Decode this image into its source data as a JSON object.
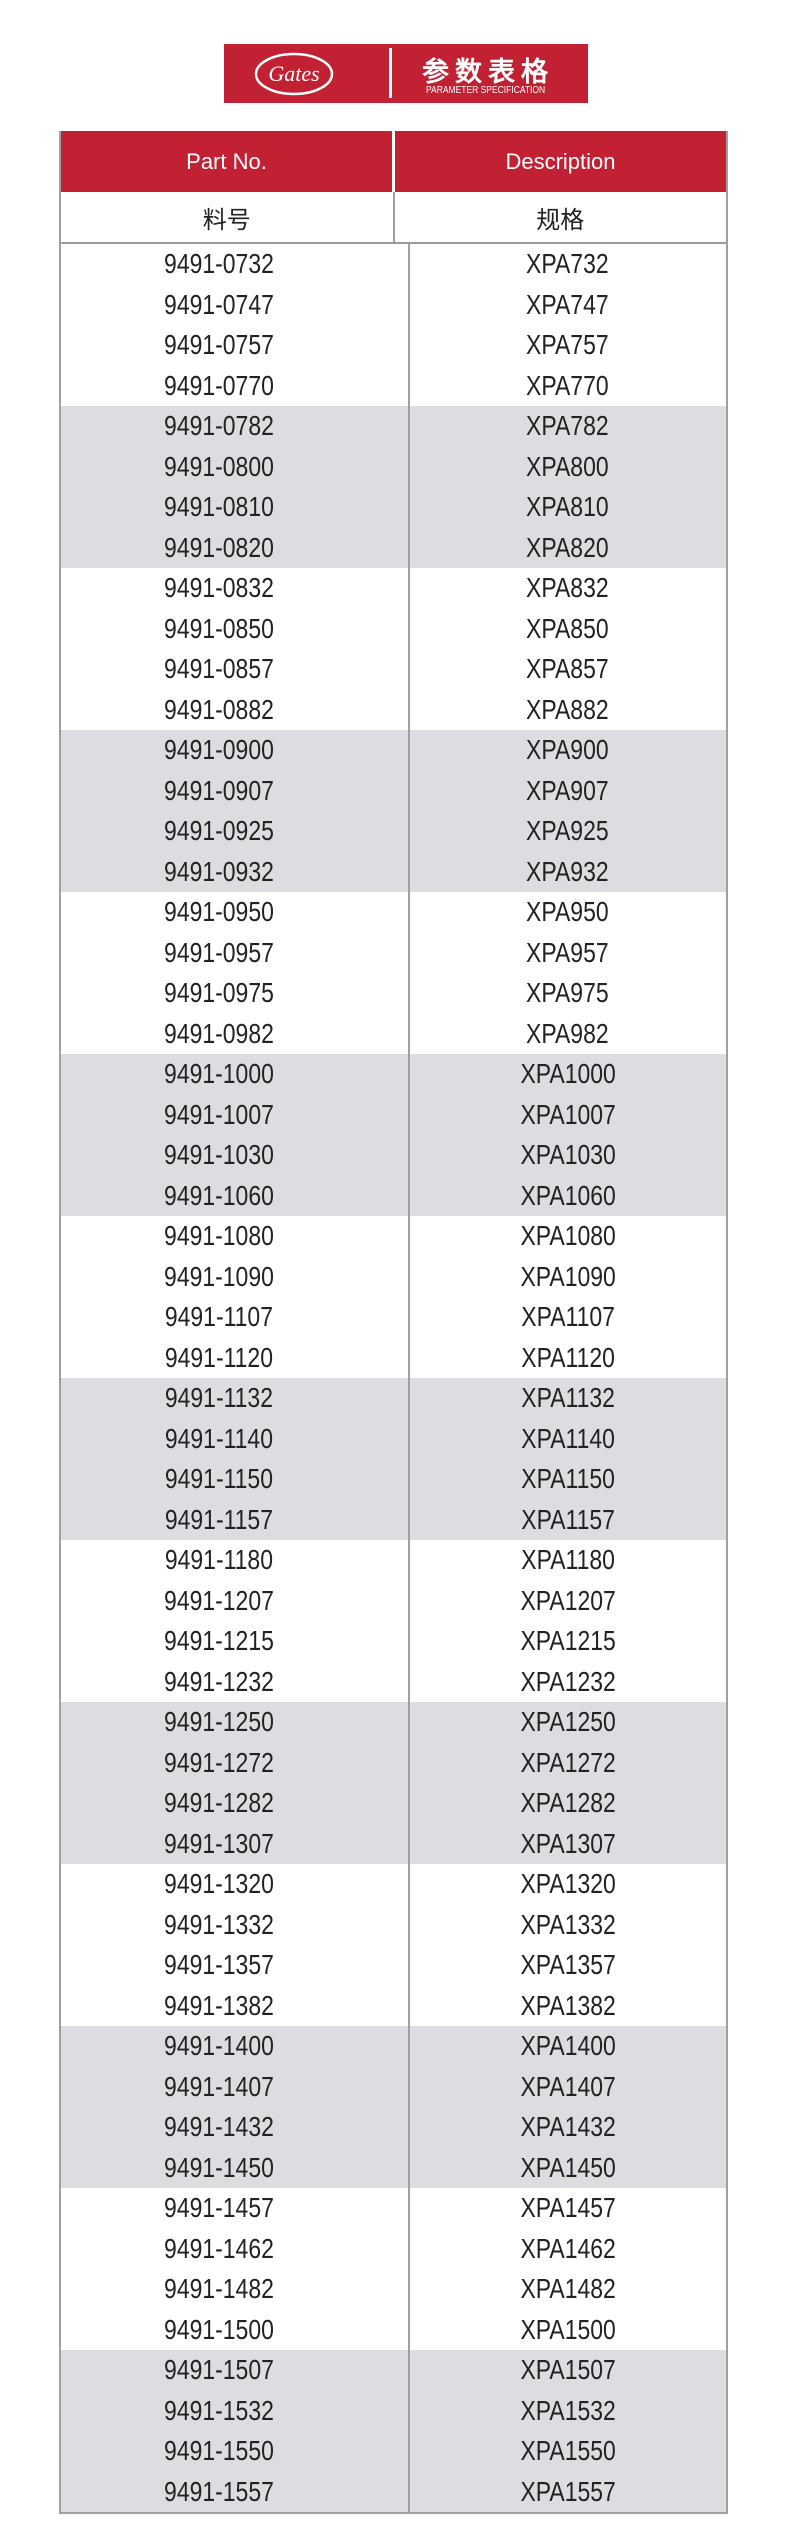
{
  "banner": {
    "logo_text": "Gates",
    "title": "参数表格",
    "subtitle": "PARAMETER SPECIFICATION"
  },
  "colors": {
    "brand_red": "#c22033",
    "row_grey": "#dcdde0"
  },
  "table": {
    "headers": [
      "Part No.",
      "Description"
    ],
    "subheaders": [
      "料号",
      "规格"
    ],
    "rows": [
      [
        "9491-0732",
        "XPA732"
      ],
      [
        "9491-0747",
        "XPA747"
      ],
      [
        "9491-0757",
        "XPA757"
      ],
      [
        "9491-0770",
        "XPA770"
      ],
      [
        "9491-0782",
        "XPA782"
      ],
      [
        "9491-0800",
        "XPA800"
      ],
      [
        "9491-0810",
        "XPA810"
      ],
      [
        "9491-0820",
        "XPA820"
      ],
      [
        "9491-0832",
        "XPA832"
      ],
      [
        "9491-0850",
        "XPA850"
      ],
      [
        "9491-0857",
        "XPA857"
      ],
      [
        "9491-0882",
        "XPA882"
      ],
      [
        "9491-0900",
        "XPA900"
      ],
      [
        "9491-0907",
        "XPA907"
      ],
      [
        "9491-0925",
        "XPA925"
      ],
      [
        "9491-0932",
        "XPA932"
      ],
      [
        "9491-0950",
        "XPA950"
      ],
      [
        "9491-0957",
        "XPA957"
      ],
      [
        "9491-0975",
        "XPA975"
      ],
      [
        "9491-0982",
        "XPA982"
      ],
      [
        "9491-1000",
        "XPA1000"
      ],
      [
        "9491-1007",
        "XPA1007"
      ],
      [
        "9491-1030",
        "XPA1030"
      ],
      [
        "9491-1060",
        "XPA1060"
      ],
      [
        "9491-1080",
        "XPA1080"
      ],
      [
        "9491-1090",
        "XPA1090"
      ],
      [
        "9491-1107",
        "XPA1107"
      ],
      [
        "9491-1120",
        "XPA1120"
      ],
      [
        "9491-1132",
        "XPA1132"
      ],
      [
        "9491-1140",
        "XPA1140"
      ],
      [
        "9491-1150",
        "XPA1150"
      ],
      [
        "9491-1157",
        "XPA1157"
      ],
      [
        "9491-1180",
        "XPA1180"
      ],
      [
        "9491-1207",
        "XPA1207"
      ],
      [
        "9491-1215",
        "XPA1215"
      ],
      [
        "9491-1232",
        "XPA1232"
      ],
      [
        "9491-1250",
        "XPA1250"
      ],
      [
        "9491-1272",
        "XPA1272"
      ],
      [
        "9491-1282",
        "XPA1282"
      ],
      [
        "9491-1307",
        "XPA1307"
      ],
      [
        "9491-1320",
        "XPA1320"
      ],
      [
        "9491-1332",
        "XPA1332"
      ],
      [
        "9491-1357",
        "XPA1357"
      ],
      [
        "9491-1382",
        "XPA1382"
      ],
      [
        "9491-1400",
        "XPA1400"
      ],
      [
        "9491-1407",
        "XPA1407"
      ],
      [
        "9491-1432",
        "XPA1432"
      ],
      [
        "9491-1450",
        "XPA1450"
      ],
      [
        "9491-1457",
        "XPA1457"
      ],
      [
        "9491-1462",
        "XPA1462"
      ],
      [
        "9491-1482",
        "XPA1482"
      ],
      [
        "9491-1500",
        "XPA1500"
      ],
      [
        "9491-1507",
        "XPA1507"
      ],
      [
        "9491-1532",
        "XPA1532"
      ],
      [
        "9491-1550",
        "XPA1550"
      ],
      [
        "9491-1557",
        "XPA1557"
      ]
    ]
  }
}
